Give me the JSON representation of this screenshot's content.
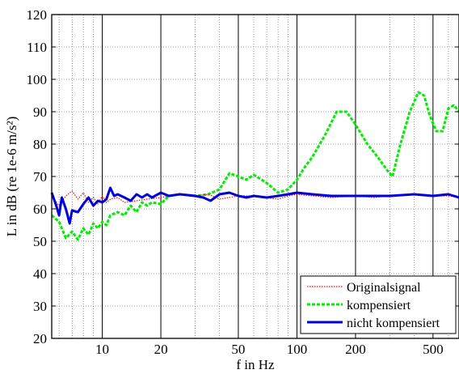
{
  "chart_data": {
    "type": "line",
    "title": "",
    "xlabel": "f in Hz",
    "ylabel": "L in dB (re 1e-6 m/s²)",
    "xscale": "log",
    "xlim": [
      5.5,
      680
    ],
    "ylim": [
      20,
      120
    ],
    "grid": true,
    "legend_position": "bottom-right",
    "y_ticks": [
      20,
      30,
      40,
      50,
      60,
      70,
      80,
      90,
      100,
      110,
      120
    ],
    "x_tick_values": [
      10,
      20,
      50,
      100,
      200,
      500
    ],
    "x_tick_labels": [
      "10",
      "20",
      "50",
      "100",
      "200",
      "500"
    ],
    "series": [
      {
        "name": "Originalsignal",
        "color": "#ff0000",
        "style": "dotted",
        "x": [
          5.5,
          6,
          6.5,
          7,
          7.5,
          8,
          8.5,
          9,
          9.5,
          10,
          10.5,
          11,
          12,
          13,
          15,
          17,
          20,
          25,
          30,
          35,
          40,
          50,
          60,
          70,
          80,
          90,
          100,
          120,
          150,
          200,
          250,
          300,
          400,
          500,
          600,
          680
        ],
        "values": [
          64,
          61,
          64,
          65.5,
          63,
          65,
          62,
          63.5,
          61.5,
          64,
          62,
          63,
          63.5,
          62,
          62.5,
          63,
          63.5,
          64.5,
          64,
          64.5,
          63,
          64,
          64,
          63.5,
          63,
          64,
          64.5,
          64,
          63.5,
          64,
          63.5,
          64,
          64.5,
          64,
          64,
          63.5
        ]
      },
      {
        "name": "kompensiert",
        "color": "#00ee00",
        "style": "dashed",
        "x": [
          5.5,
          6,
          6.5,
          7,
          7.5,
          8,
          8.5,
          9,
          9.5,
          10,
          10.5,
          11,
          12,
          13,
          14,
          15,
          16,
          17,
          18,
          20,
          22,
          25,
          30,
          35,
          40,
          45,
          50,
          55,
          60,
          70,
          80,
          90,
          100,
          110,
          120,
          140,
          160,
          180,
          200,
          230,
          260,
          290,
          310,
          340,
          380,
          420,
          450,
          480,
          520,
          560,
          600,
          640,
          680
        ],
        "values": [
          58,
          56,
          51,
          53,
          50.5,
          54,
          52,
          55.5,
          54,
          56,
          55,
          58,
          59,
          58,
          61,
          59,
          62,
          61,
          62,
          61.5,
          64,
          64.5,
          64,
          64.5,
          66,
          71,
          70,
          69,
          70.5,
          68,
          65,
          66,
          69,
          73,
          76,
          83,
          90,
          90,
          86,
          80,
          76,
          72,
          70,
          80,
          90,
          96,
          95,
          89,
          84,
          84,
          91,
          92,
          90
        ]
      },
      {
        "name": "nicht kompensiert",
        "color": "#0000dd",
        "style": "solid",
        "x": [
          5.5,
          5.8,
          6,
          6.2,
          6.5,
          6.8,
          7,
          7.5,
          8,
          8.5,
          9,
          9.5,
          10,
          10.5,
          11,
          11.5,
          12,
          13,
          14,
          15,
          16,
          17,
          18,
          20,
          22,
          25,
          30,
          33,
          36,
          40,
          45,
          50,
          55,
          60,
          70,
          80,
          90,
          100,
          120,
          150,
          200,
          250,
          300,
          400,
          500,
          600,
          680
        ],
        "values": [
          65,
          61,
          58,
          63.5,
          60,
          55.5,
          59.5,
          59,
          61.5,
          63.5,
          61,
          62.5,
          62,
          63,
          66.5,
          64,
          64.5,
          63.5,
          62.5,
          64.5,
          63.5,
          64.5,
          63.5,
          65,
          64,
          64.5,
          64,
          63.5,
          62.5,
          64.5,
          65,
          64,
          63.5,
          64,
          63.5,
          64,
          64.5,
          65,
          64.5,
          64,
          64,
          64,
          64,
          64.5,
          64,
          64.5,
          63.5
        ]
      }
    ]
  }
}
